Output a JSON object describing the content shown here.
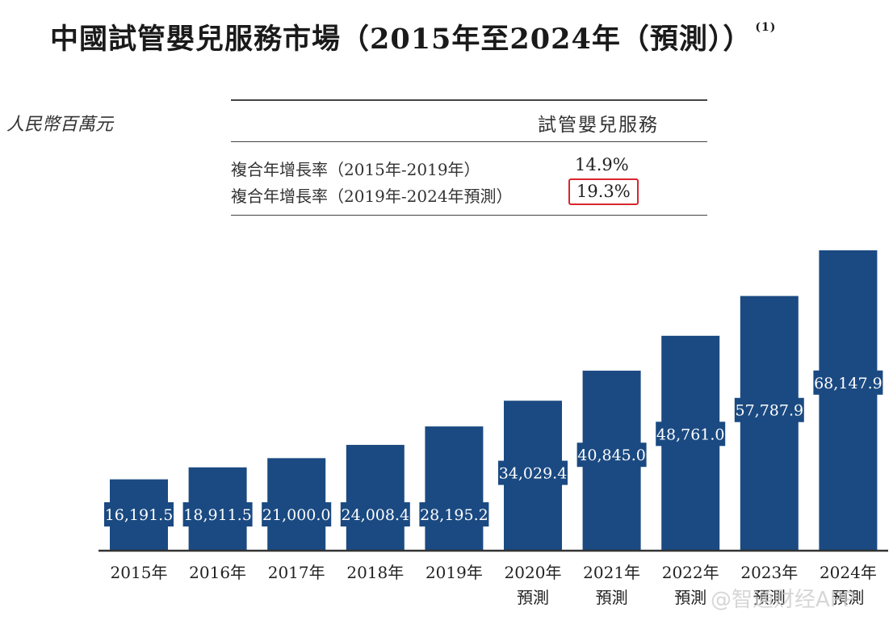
{
  "title": "中國試管嬰兒服務市場（2015年至2024年（預測））",
  "title_note": "(1)",
  "unit_label": "人民幣百萬元",
  "cagr_table": {
    "column_header": "試管嬰兒服務",
    "rows": [
      {
        "label": "複合年增長率（2015年-2019年）",
        "value": "14.9%",
        "highlighted": false
      },
      {
        "label": "複合年增長率（2019年-2024年預測）",
        "value": "19.3%",
        "highlighted": true
      }
    ],
    "highlight_color": "#d9262e"
  },
  "chart_data": {
    "type": "bar",
    "title": "中國試管嬰兒服務市場（2015年至2024年（預測））",
    "ylabel": "人民幣百萬元",
    "categories": [
      "2015年",
      "2016年",
      "2017年",
      "2018年",
      "2019年",
      "2020年\n預測",
      "2021年\n預測",
      "2022年\n預測",
      "2023年\n預測",
      "2024年\n預測"
    ],
    "values": [
      16191.5,
      18911.5,
      21000.0,
      24008.4,
      28195.2,
      34029.4,
      40845.0,
      48761.0,
      57787.9,
      68147.9
    ],
    "value_labels": [
      "16,191.5",
      "18,911.5",
      "21,000.0",
      "24,008.4",
      "28,195.2",
      "34,029.4",
      "40,845.0",
      "48,761.0",
      "57,787.9",
      "68,147.9"
    ],
    "ylim": [
      0,
      68147.9
    ],
    "grid": false,
    "bar_color": "#1b4a82"
  },
  "watermark": "@智通财经APP"
}
